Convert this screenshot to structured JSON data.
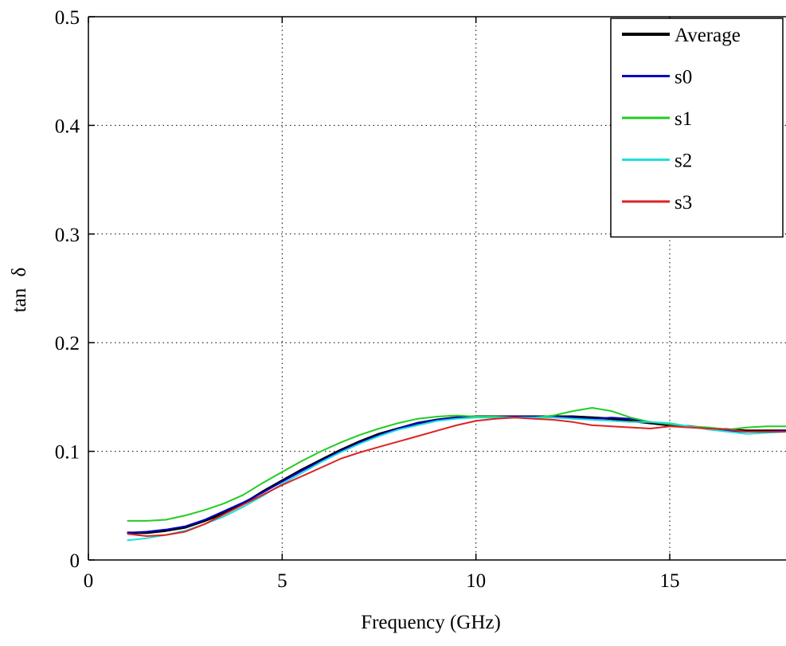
{
  "chart_data": {
    "type": "line",
    "title": "",
    "xlabel": "Frequency (GHz)",
    "ylabel": "tan δ",
    "xlim": [
      0,
      18
    ],
    "ylim": [
      0,
      0.5
    ],
    "x_ticks": [
      {
        "value": 0,
        "label": "0"
      },
      {
        "value": 5,
        "label": "5"
      },
      {
        "value": 10,
        "label": "10"
      },
      {
        "value": 15,
        "label": "15"
      }
    ],
    "y_ticks": [
      {
        "value": 0,
        "label": "0"
      },
      {
        "value": 0.1,
        "label": "0.1"
      },
      {
        "value": 0.2,
        "label": "0.2"
      },
      {
        "value": 0.3,
        "label": "0.3"
      },
      {
        "value": 0.4,
        "label": "0.4"
      },
      {
        "value": 0.5,
        "label": "0.5"
      }
    ],
    "grid": true,
    "legend_position": "top-right",
    "x": [
      1,
      1.5,
      2,
      2.5,
      3,
      3.5,
      4,
      4.5,
      5,
      5.5,
      6,
      6.5,
      7,
      7.5,
      8,
      8.5,
      9,
      9.5,
      10,
      10.5,
      11,
      11.5,
      12,
      12.5,
      13,
      13.5,
      14,
      14.5,
      15,
      15.5,
      16,
      16.5,
      17,
      17.5,
      18
    ],
    "series": [
      {
        "name": "Average",
        "color": "#000000",
        "width": 3,
        "values": [
          0.025,
          0.025,
          0.027,
          0.03,
          0.036,
          0.043,
          0.052,
          0.063,
          0.073,
          0.083,
          0.092,
          0.101,
          0.109,
          0.116,
          0.121,
          0.126,
          0.129,
          0.131,
          0.132,
          0.132,
          0.132,
          0.132,
          0.132,
          0.132,
          0.131,
          0.13,
          0.128,
          0.126,
          0.124,
          0.123,
          0.121,
          0.12,
          0.119,
          0.119,
          0.119
        ]
      },
      {
        "name": "s0",
        "color": "#0000cc",
        "width": 2,
        "values": [
          0.025,
          0.026,
          0.028,
          0.031,
          0.037,
          0.045,
          0.053,
          0.062,
          0.072,
          0.082,
          0.091,
          0.1,
          0.108,
          0.115,
          0.121,
          0.126,
          0.129,
          0.131,
          0.132,
          0.132,
          0.132,
          0.132,
          0.132,
          0.131,
          0.13,
          0.131,
          0.13,
          0.127,
          0.125,
          0.123,
          0.121,
          0.119,
          0.118,
          0.118,
          0.119
        ]
      },
      {
        "name": "s1",
        "color": "#22cc22",
        "width": 2,
        "values": [
          0.036,
          0.036,
          0.037,
          0.041,
          0.046,
          0.052,
          0.06,
          0.071,
          0.081,
          0.091,
          0.1,
          0.108,
          0.115,
          0.121,
          0.126,
          0.13,
          0.132,
          0.133,
          0.132,
          0.132,
          0.131,
          0.131,
          0.133,
          0.137,
          0.14,
          0.137,
          0.131,
          0.127,
          0.125,
          0.123,
          0.122,
          0.12,
          0.122,
          0.123,
          0.123
        ]
      },
      {
        "name": "s2",
        "color": "#22dddd",
        "width": 2,
        "values": [
          0.018,
          0.02,
          0.023,
          0.027,
          0.033,
          0.04,
          0.049,
          0.059,
          0.07,
          0.08,
          0.09,
          0.099,
          0.107,
          0.114,
          0.12,
          0.124,
          0.128,
          0.13,
          0.131,
          0.131,
          0.131,
          0.131,
          0.131,
          0.13,
          0.129,
          0.128,
          0.127,
          0.127,
          0.126,
          0.123,
          0.12,
          0.118,
          0.116,
          0.117,
          0.118
        ]
      },
      {
        "name": "s3",
        "color": "#dd2222",
        "width": 2,
        "values": [
          0.024,
          0.022,
          0.023,
          0.026,
          0.033,
          0.042,
          0.051,
          0.06,
          0.069,
          0.077,
          0.085,
          0.093,
          0.099,
          0.104,
          0.109,
          0.114,
          0.119,
          0.124,
          0.128,
          0.13,
          0.131,
          0.13,
          0.129,
          0.127,
          0.124,
          0.123,
          0.122,
          0.121,
          0.123,
          0.122,
          0.121,
          0.12,
          0.118,
          0.118,
          0.118
        ]
      }
    ]
  }
}
